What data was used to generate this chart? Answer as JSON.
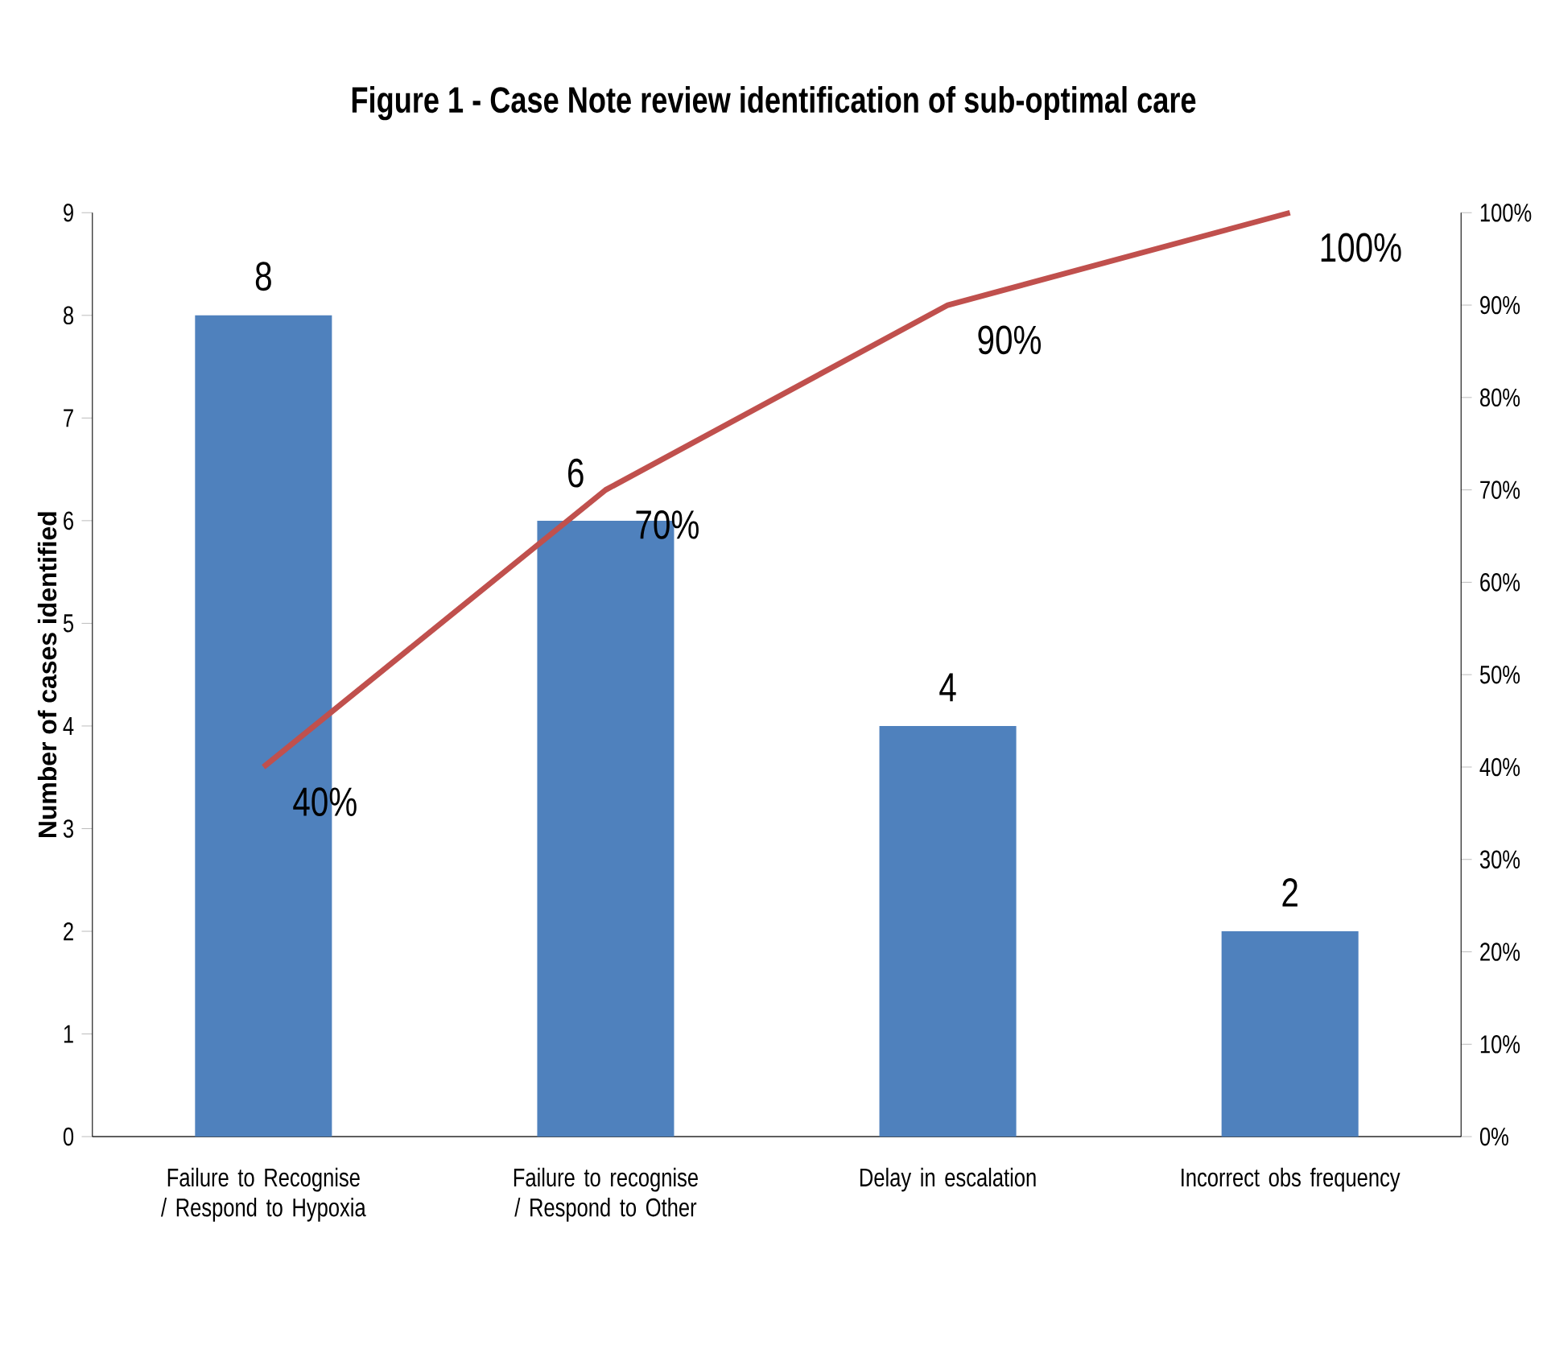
{
  "chart_data": {
    "type": "bar",
    "title": "Figure 1 - Case Note review identification of sub-optimal care",
    "ylabel": "Number of cases identified",
    "categories": [
      "Failure to Recognise / Respond to Hypoxia",
      "Failure to recognise / Respond to Other",
      "Delay in escalation",
      "Incorrect obs frequency"
    ],
    "series": [
      {
        "color": "#4f81bd",
        "values": [
          8,
          6,
          4,
          2
        ],
        "value_labels": [
          "8",
          "6",
          "4",
          "2"
        ]
      },
      {
        "type": "line",
        "axis": "y2",
        "color": "#c0504d",
        "values": [
          40,
          70,
          90,
          100
        ],
        "value_labels": [
          "40%",
          "70%",
          "90%",
          "100%"
        ]
      }
    ],
    "ylim": [
      0,
      9
    ],
    "yticks": [
      0,
      1,
      2,
      3,
      4,
      5,
      6,
      7,
      8,
      9
    ],
    "y2lim": [
      0,
      100
    ],
    "y2ticks": [
      {
        "value": 0,
        "label": "0%"
      },
      {
        "value": 10,
        "label": "10%"
      },
      {
        "value": 20,
        "label": "20%"
      },
      {
        "value": 30,
        "label": "30%"
      },
      {
        "value": 40,
        "label": "40%"
      },
      {
        "value": 50,
        "label": "50%"
      },
      {
        "value": 60,
        "label": "60%"
      },
      {
        "value": 70,
        "label": "70%"
      },
      {
        "value": 80,
        "label": "80%"
      },
      {
        "value": 90,
        "label": "90%"
      },
      {
        "value": 100,
        "label": "100%"
      }
    ],
    "grid": false,
    "marker": "none",
    "line_style": "solid"
  }
}
